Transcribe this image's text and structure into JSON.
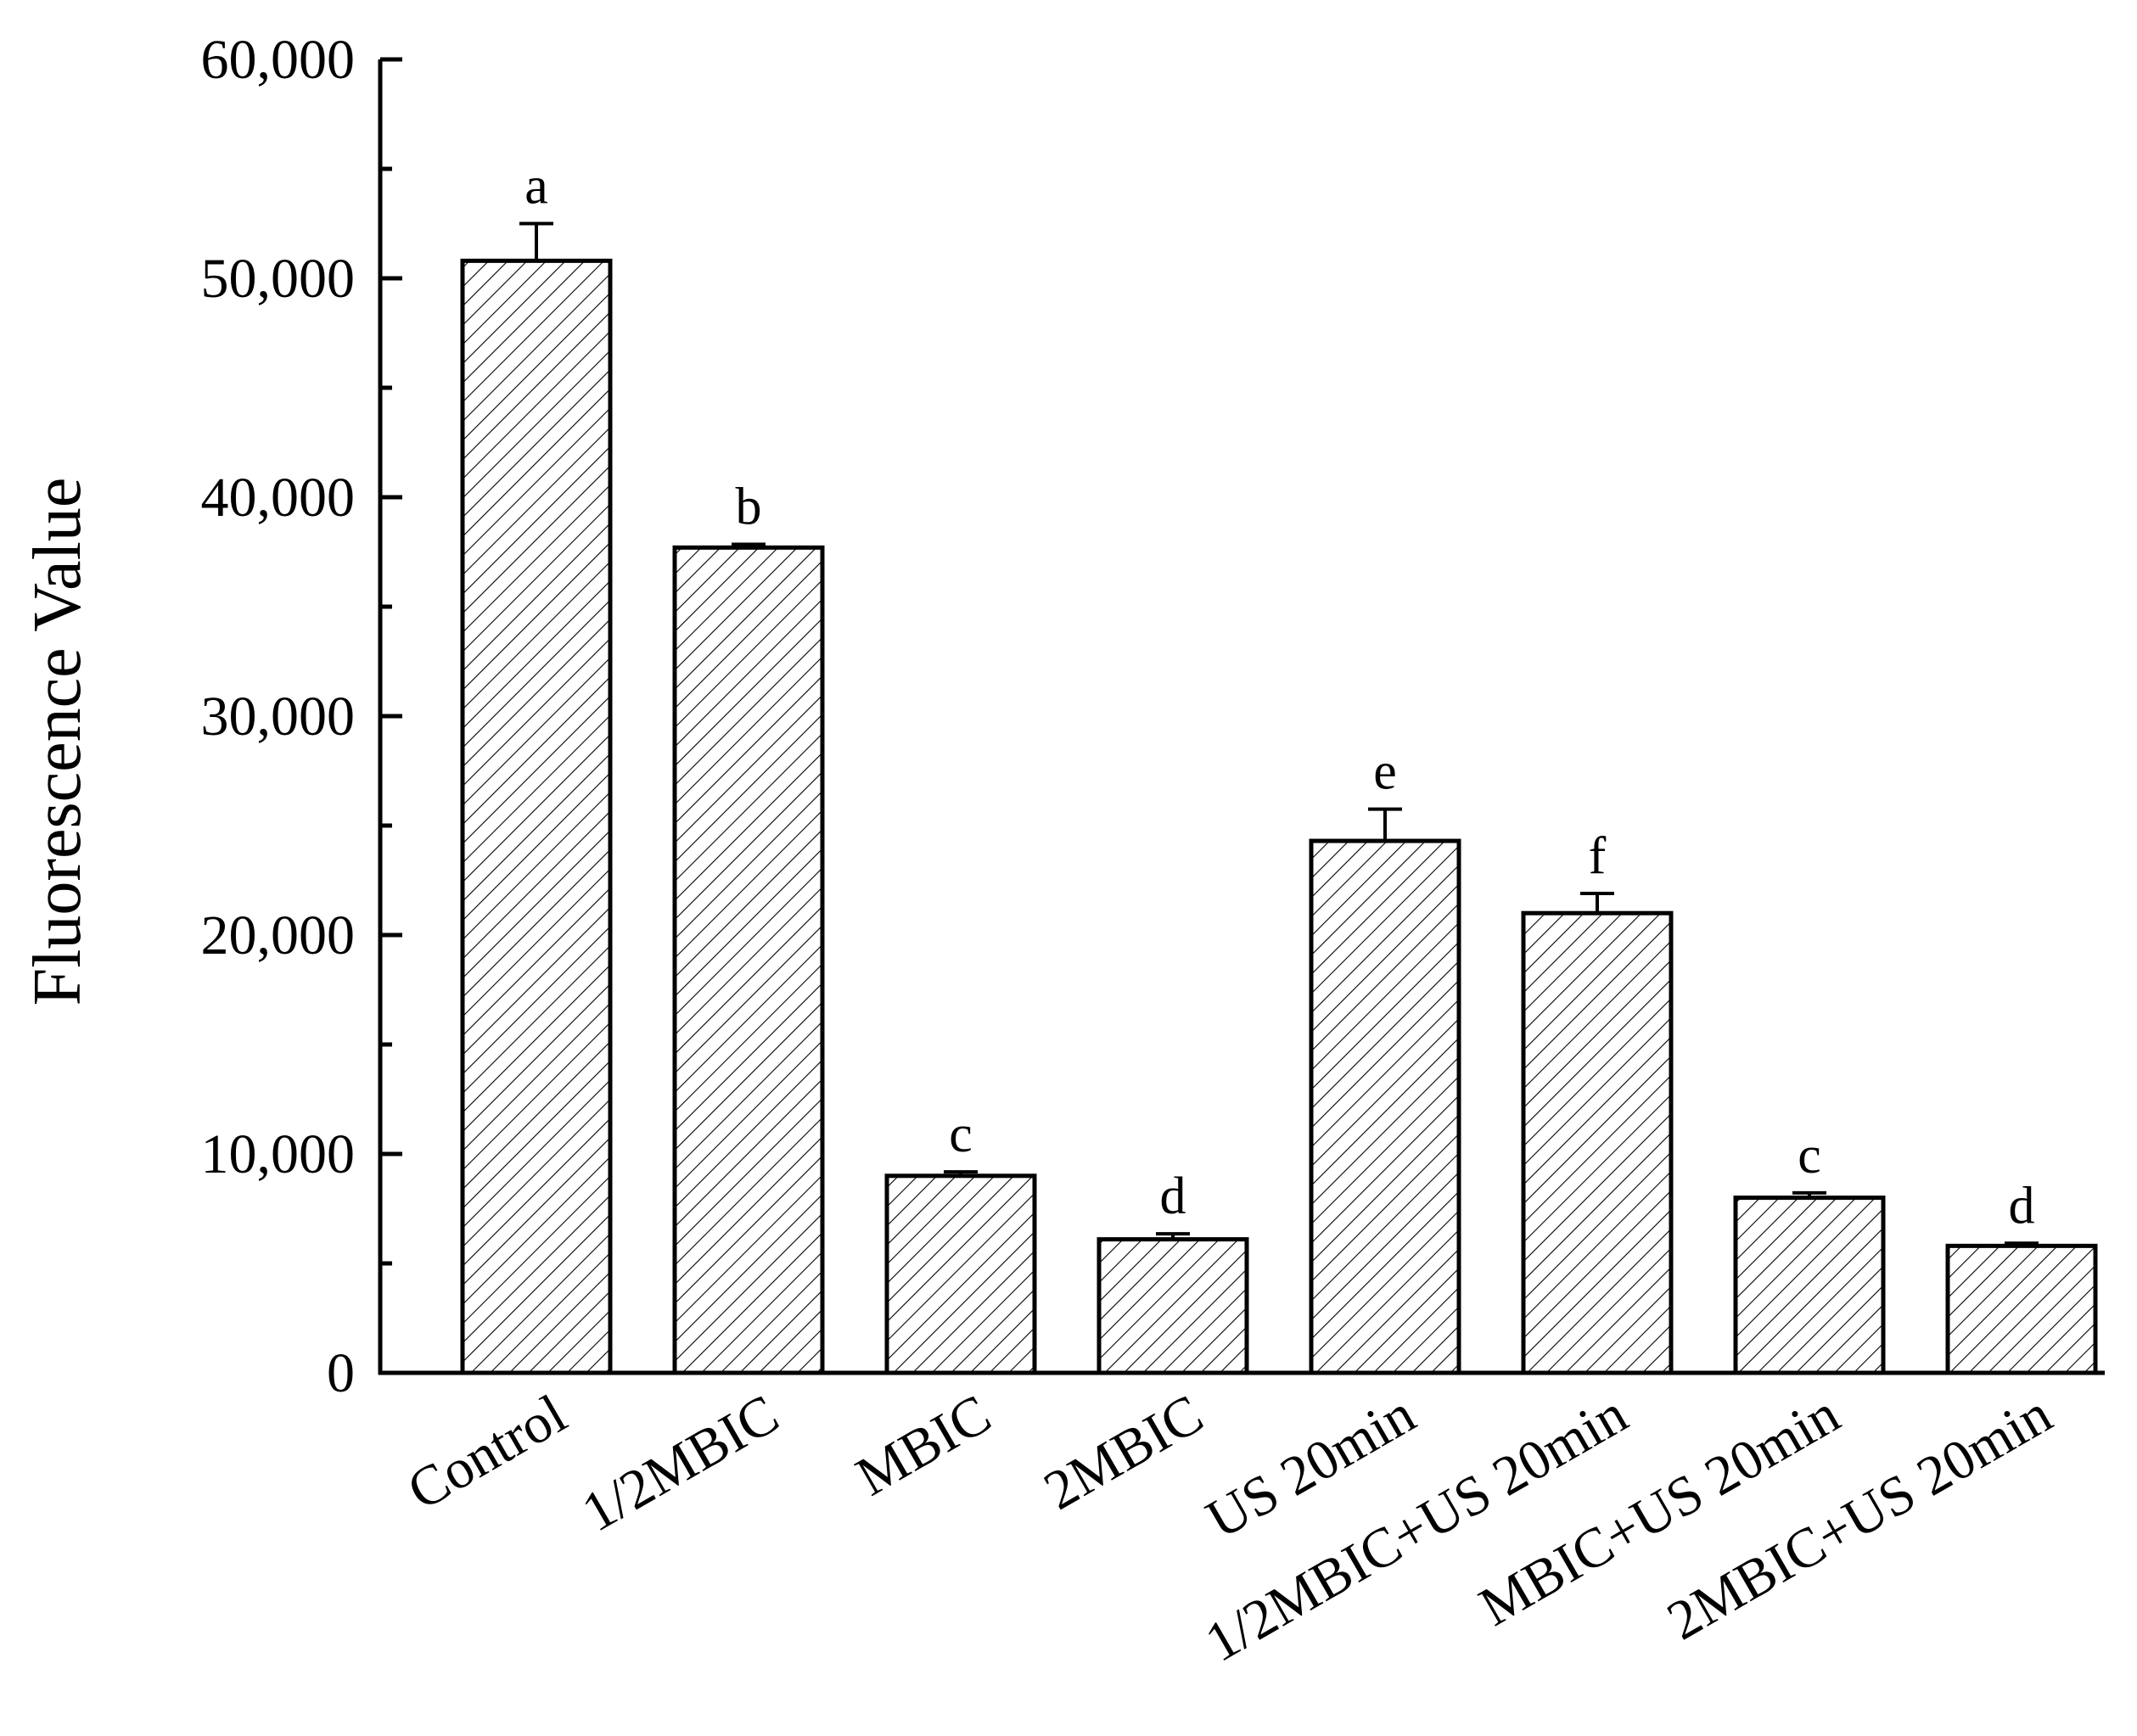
{
  "chart_data": {
    "type": "bar",
    "title": "",
    "xlabel": "",
    "ylabel": "Fluorescence Value",
    "ylim": [
      0,
      60000
    ],
    "yticks": [
      0,
      10000,
      20000,
      30000,
      40000,
      50000,
      60000
    ],
    "ytick_labels": [
      "0",
      "10,000",
      "20,000",
      "30,000",
      "40,000",
      "50,000",
      "60,000"
    ],
    "categories": [
      "Control",
      "1/2MBIC",
      "MBIC",
      "2MBIC",
      "US 20min",
      "1/2MBIC+US 20min",
      "MBIC+US 20min",
      "2MBIC+US 20min"
    ],
    "values": [
      50800,
      37700,
      9000,
      6100,
      24300,
      21000,
      8000,
      5800
    ],
    "errors": [
      1700,
      150,
      180,
      250,
      1450,
      900,
      220,
      120
    ],
    "significance": [
      "a",
      "b",
      "c",
      "d",
      "e",
      "f",
      "c",
      "d"
    ],
    "bar_fill": "hatched",
    "colors": {
      "bar_stroke": "#000000",
      "hatch": "#000000",
      "background": "#ffffff"
    },
    "grid": false,
    "legend": "none"
  }
}
